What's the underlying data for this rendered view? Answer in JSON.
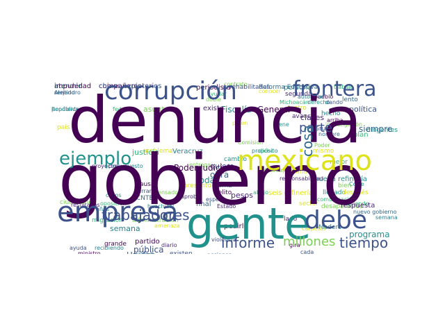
{
  "palette": {
    "dark_purple": "#440154",
    "indigo": "#3b528b",
    "blue": "#31688e",
    "teal": "#21918c",
    "green": "#35b779",
    "light_green": "#7ad151",
    "yellow": "#dde318"
  },
  "words": [
    {
      "id": "gobierno",
      "text": "gobierno",
      "weight": 100,
      "color": "dark_purple"
    },
    {
      "id": "denuncia",
      "text": "denuncia",
      "weight": 92,
      "color": "dark_purple"
    },
    {
      "id": "gente",
      "text": "gente",
      "weight": 60,
      "color": "teal"
    },
    {
      "id": "mexicano",
      "text": "mexicano",
      "weight": 45,
      "color": "yellow"
    },
    {
      "id": "empresa",
      "text": "empresa",
      "weight": 42,
      "color": "indigo"
    },
    {
      "id": "corrupcion",
      "text": "corrupción",
      "weight": 38,
      "color": "indigo"
    },
    {
      "id": "debe",
      "text": "debe",
      "weight": 36,
      "color": "indigo"
    },
    {
      "id": "frontera",
      "text": "frontera",
      "weight": 32,
      "color": "indigo"
    },
    {
      "id": "ejemplo",
      "text": "ejemplo",
      "weight": 28,
      "color": "teal"
    },
    {
      "id": "trabajadores",
      "text": "trabajadores",
      "weight": 22,
      "color": "indigo"
    },
    {
      "id": "informe",
      "text": "informe",
      "weight": 20,
      "color": "indigo"
    },
    {
      "id": "tiempo",
      "text": "tiempo",
      "weight": 20,
      "color": "indigo"
    },
    {
      "id": "parte",
      "text": "parte",
      "weight": 18,
      "color": "indigo"
    },
    {
      "id": "millones",
      "text": "millones",
      "weight": 18,
      "color": "light_green"
    },
    {
      "id": "cosa",
      "text": "cosa",
      "weight": 18,
      "color": "blue"
    },
    {
      "id": "empresa2",
      "text": "empresa",
      "weight": 1,
      "color": "indigo",
      "hidden": true
    }
  ],
  "small_words": [
    "impunidad",
    "chivos expiatorios",
    "Alejandro",
    "República",
    "federal",
    "asunto",
    "país",
    "existe",
    "Fiscalía",
    "General",
    "política",
    "siempre",
    "dirigentes",
    "plan",
    "Poder",
    "mismo",
    "clases",
    "Veracruz",
    "Poder Judicial",
    "quiero",
    "obra",
    "toda",
    "justicia",
    "ciudadanos",
    "seis refinerías",
    "pesos",
    "semana",
    "partido",
    "pública",
    "Unidos",
    "programa",
    "dicho",
    "Comisión",
    "problema",
    "proyectos",
    "presupuesto",
    "causa",
    "cerrar",
    "CNTE",
    "casos",
    "oposición",
    "pensado",
    "presunto",
    "aprobó",
    "terna",
    "delito",
    "espero",
    "final",
    "huachicol",
    "migración",
    "administración",
    "amenaza",
    "diario",
    "recibiendo",
    "ministro",
    "existen",
    "nuevo gobierno",
    "nueva refinería",
    "mejor",
    "bien",
    "después",
    "respuesta",
    "semana",
    "periodista",
    "rehabilitadas",
    "Reforma Educativa",
    "persona",
    "trabajo",
    "contrato",
    "conocer",
    "segunda",
    "autoridad",
    "pueblo",
    "dando",
    "lento",
    "derecho",
    "Michoacán",
    "investigación",
    "cuatro",
    "avance",
    "hecho",
    "arriba",
    "Grupo",
    "nombre",
    "viene",
    "ayudar",
    "doble",
    "piden",
    "resultados",
    "años",
    "grande",
    "ayuda",
    "verdad",
    "Corte",
    "haciendo",
    "Guadalajara",
    "carpetas",
    "lado",
    "Madero",
    "gira",
    "cada",
    "digo",
    "llegado",
    "comunicación",
    "desaparecido",
    "hablando",
    "responsabilidad",
    "propósito",
    "pedirle",
    "violencia",
    "acciones",
    "cambio",
    "abajo",
    "entrega",
    "sector",
    "Estado",
    "atender",
    "compañeros",
    "sentido",
    "pendiente"
  ]
}
